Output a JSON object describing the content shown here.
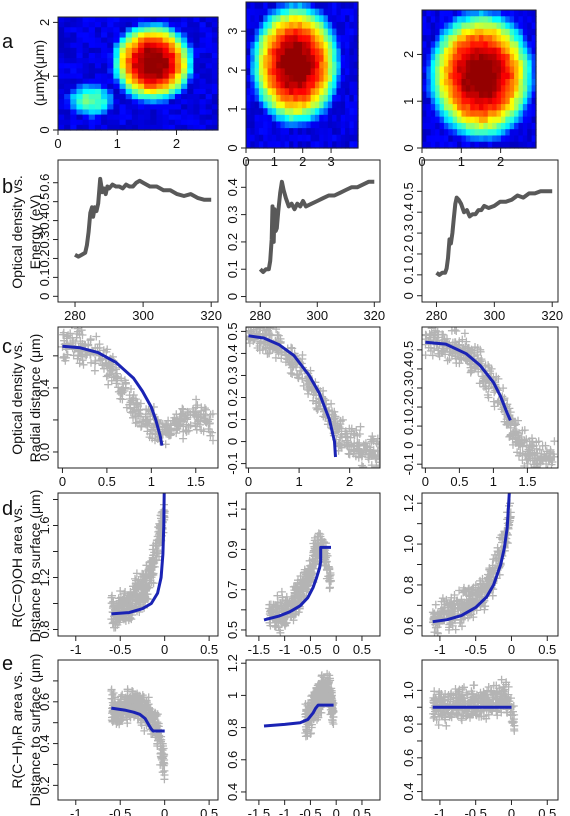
{
  "figure": {
    "row_labels": [
      "a",
      "b",
      "c",
      "d",
      "e"
    ],
    "row_a_ylabel": "(μm)×(μm)",
    "row_b_ylabel": [
      "Optical density vs.",
      "Energy (eV)"
    ],
    "row_c_ylabel": [
      "Optical density vs.",
      "Radial distance (μm)"
    ],
    "row_d_ylabel": [
      "R(C=O)OH area vs.",
      "Distance to surface (μm)"
    ],
    "row_e_ylabel": [
      "R(C−H)ₙR area vs.",
      "Distance to surface (μm)"
    ]
  },
  "colors": {
    "fit_line": "#1a23b4",
    "markers": "#b4b4b4",
    "spectrum": "#595959"
  },
  "chart_data": [
    {
      "row": "a",
      "col": 0,
      "type": "heatmap",
      "xlim": [
        0,
        2.7
      ],
      "ylim": [
        0,
        2.1
      ],
      "xticks": [
        0,
        1,
        2
      ],
      "yticks": [
        0,
        1,
        2
      ],
      "blobs": [
        [
          1.6,
          1.25,
          0.75,
          0.8
        ],
        [
          0.55,
          0.55,
          0.45,
          0.35
        ]
      ]
    },
    {
      "row": "a",
      "col": 1,
      "type": "heatmap",
      "xlim": [
        0,
        3.95
      ],
      "ylim": [
        0,
        3.75
      ],
      "xticks": [
        0,
        1,
        2,
        3
      ],
      "yticks": [
        0,
        1,
        2,
        3
      ],
      "blobs": [
        [
          1.75,
          2.15,
          1.7,
          1.7
        ]
      ]
    },
    {
      "row": "a",
      "col": 2,
      "type": "heatmap",
      "xlim": [
        0,
        2.9
      ],
      "ylim": [
        0,
        2.95
      ],
      "xticks": [
        0,
        1,
        2
      ],
      "yticks": [
        0,
        1,
        2
      ],
      "blobs": [
        [
          1.5,
          1.55,
          1.45,
          1.5
        ]
      ]
    },
    {
      "row": "b",
      "col": 0,
      "type": "line",
      "xlim": [
        275,
        322
      ],
      "ylim": [
        -0.03,
        0.72
      ],
      "xticks": [
        280,
        300,
        320
      ],
      "yticks": [
        0.0,
        0.1,
        0.2,
        0.3,
        0.4,
        0.5,
        0.6
      ],
      "x": [
        280,
        281,
        282,
        283,
        283.5,
        284,
        284.5,
        285,
        285.3,
        285.8,
        286.3,
        286.8,
        287.4,
        288,
        288.5,
        289,
        289.5,
        290,
        291,
        292,
        293,
        294,
        295,
        296,
        297,
        298,
        299,
        300,
        301,
        302,
        304,
        306,
        308,
        310,
        312,
        314,
        316,
        318,
        320
      ],
      "y": [
        0.22,
        0.21,
        0.22,
        0.23,
        0.27,
        0.34,
        0.44,
        0.47,
        0.42,
        0.47,
        0.45,
        0.49,
        0.62,
        0.55,
        0.57,
        0.54,
        0.58,
        0.57,
        0.59,
        0.58,
        0.58,
        0.57,
        0.59,
        0.58,
        0.58,
        0.6,
        0.61,
        0.6,
        0.59,
        0.58,
        0.58,
        0.56,
        0.56,
        0.54,
        0.53,
        0.54,
        0.52,
        0.51,
        0.51
      ]
    },
    {
      "row": "b",
      "col": 1,
      "type": "line",
      "xlim": [
        275,
        322
      ],
      "ylim": [
        -0.02,
        0.5
      ],
      "xticks": [
        280,
        300,
        320
      ],
      "yticks": [
        0.0,
        0.1,
        0.2,
        0.3,
        0.4
      ],
      "x": [
        280,
        281,
        282,
        283,
        283.5,
        284,
        284.3,
        284.7,
        285,
        285.4,
        285.8,
        286.3,
        287,
        287.6,
        288.2,
        289,
        290,
        291,
        292,
        293,
        294,
        295,
        296,
        298,
        300,
        302,
        304,
        306,
        308,
        310,
        312,
        314,
        316,
        318,
        320
      ],
      "y": [
        0.1,
        0.09,
        0.1,
        0.1,
        0.13,
        0.21,
        0.33,
        0.2,
        0.32,
        0.24,
        0.25,
        0.31,
        0.38,
        0.42,
        0.39,
        0.36,
        0.33,
        0.34,
        0.32,
        0.34,
        0.33,
        0.35,
        0.33,
        0.34,
        0.35,
        0.36,
        0.37,
        0.37,
        0.38,
        0.39,
        0.4,
        0.4,
        0.41,
        0.42,
        0.42
      ]
    },
    {
      "row": "b",
      "col": 2,
      "type": "line",
      "xlim": [
        275,
        322
      ],
      "ylim": [
        -0.03,
        0.65
      ],
      "xticks": [
        280,
        300,
        320
      ],
      "yticks": [
        0.0,
        0.1,
        0.2,
        0.3,
        0.4,
        0.5
      ],
      "x": [
        280,
        281,
        282,
        283,
        283.5,
        284,
        284.5,
        285,
        285.5,
        286,
        286.5,
        287,
        287.7,
        288.5,
        289.5,
        290.5,
        291.5,
        292.5,
        293.5,
        294.5,
        295.5,
        296.5,
        298,
        300,
        302,
        304,
        306,
        308,
        310,
        312,
        314,
        316,
        318,
        320
      ],
      "y": [
        0.11,
        0.1,
        0.11,
        0.11,
        0.13,
        0.18,
        0.27,
        0.25,
        0.3,
        0.37,
        0.44,
        0.47,
        0.46,
        0.44,
        0.4,
        0.41,
        0.38,
        0.39,
        0.39,
        0.41,
        0.41,
        0.43,
        0.42,
        0.43,
        0.45,
        0.45,
        0.46,
        0.48,
        0.47,
        0.49,
        0.49,
        0.5,
        0.5,
        0.5
      ]
    },
    {
      "row": "c",
      "col": 0,
      "type": "scatter",
      "xlim": [
        -0.05,
        1.75
      ],
      "ylim": [
        -0.1,
        0.78
      ],
      "xticks": [
        0.0,
        0.5,
        1.0,
        1.5
      ],
      "yticks": [
        0.0,
        0.2,
        0.4,
        0.6
      ],
      "ytick_labels": [
        "0.0",
        "",
        "0.4",
        ""
      ],
      "scatter_x": [
        0.0,
        0.1,
        0.2,
        0.3,
        0.4,
        0.5,
        0.6,
        0.7,
        0.8,
        0.9,
        1.0,
        1.05,
        1.1,
        1.2,
        1.3,
        1.4,
        1.5,
        1.6,
        1.7
      ],
      "scatter_y": [
        0.68,
        0.67,
        0.66,
        0.63,
        0.59,
        0.54,
        0.47,
        0.38,
        0.28,
        0.22,
        0.18,
        0.15,
        0.14,
        0.14,
        0.18,
        0.2,
        0.23,
        0.21,
        0.16
      ],
      "fit_x": [
        0.0,
        0.2,
        0.4,
        0.6,
        0.8,
        0.9,
        1.0,
        1.05,
        1.1,
        1.12
      ],
      "fit_y": [
        0.66,
        0.65,
        0.62,
        0.56,
        0.46,
        0.38,
        0.28,
        0.2,
        0.1,
        0.04
      ]
    },
    {
      "row": "c",
      "col": 1,
      "type": "scatter",
      "xlim": [
        -0.05,
        2.6
      ],
      "ylim": [
        -0.12,
        0.52
      ],
      "xticks": [
        0.0,
        1.0,
        2.0
      ],
      "yticks": [
        -0.1,
        0.0,
        0.1,
        0.2,
        0.3,
        0.4,
        0.5
      ],
      "scatter_x": [
        0.0,
        0.2,
        0.4,
        0.6,
        0.8,
        1.0,
        1.2,
        1.4,
        1.6,
        1.8,
        2.0,
        2.2,
        2.4,
        2.6
      ],
      "scatter_y": [
        0.49,
        0.48,
        0.46,
        0.43,
        0.38,
        0.33,
        0.27,
        0.19,
        0.11,
        0.03,
        0.0,
        -0.02,
        -0.04,
        -0.05
      ],
      "fit_x": [
        0.0,
        0.3,
        0.6,
        0.9,
        1.2,
        1.4,
        1.6,
        1.7,
        1.72
      ],
      "fit_y": [
        0.48,
        0.47,
        0.44,
        0.39,
        0.3,
        0.22,
        0.1,
        0.0,
        -0.07
      ]
    },
    {
      "row": "c",
      "col": 2,
      "type": "scatter",
      "xlim": [
        -0.05,
        1.95
      ],
      "ylim": [
        -0.12,
        0.62
      ],
      "xticks": [
        0.0,
        0.5,
        1.0,
        1.5
      ],
      "yticks": [
        -0.1,
        0.0,
        0.1,
        0.2,
        0.3,
        0.4,
        0.5
      ],
      "scatter_x": [
        0.0,
        0.2,
        0.4,
        0.6,
        0.8,
        1.0,
        1.1,
        1.2,
        1.3,
        1.4,
        1.5,
        1.6,
        1.7,
        1.8,
        1.9
      ],
      "scatter_y": [
        0.55,
        0.54,
        0.52,
        0.48,
        0.41,
        0.31,
        0.24,
        0.15,
        0.07,
        0.01,
        -0.03,
        -0.05,
        -0.06,
        -0.06,
        -0.07
      ],
      "fit_x": [
        0.0,
        0.3,
        0.6,
        0.8,
        1.0,
        1.1,
        1.2,
        1.25
      ],
      "fit_y": [
        0.54,
        0.53,
        0.48,
        0.42,
        0.33,
        0.26,
        0.17,
        0.13
      ]
    },
    {
      "row": "d",
      "col": 0,
      "type": "scatter",
      "xlim": [
        -1.2,
        0.6
      ],
      "ylim": [
        0.75,
        1.85
      ],
      "xticks": [
        -1.0,
        -0.5,
        0.0,
        0.5
      ],
      "yticks": [
        0.8,
        1.0,
        1.2,
        1.4,
        1.6,
        1.8
      ],
      "ytick_labels": [
        "0.8",
        "",
        "1.2",
        "",
        "1.6",
        ""
      ],
      "scatter_x": [
        -0.6,
        -0.5,
        -0.4,
        -0.3,
        -0.2,
        -0.15,
        -0.1,
        -0.05,
        0.0
      ],
      "scatter_y": [
        0.93,
        0.95,
        1.0,
        1.07,
        1.15,
        1.25,
        1.4,
        1.55,
        1.7
      ],
      "fit_x": [
        -0.6,
        -0.4,
        -0.25,
        -0.15,
        -0.08,
        -0.04,
        -0.02,
        -0.01,
        -0.005
      ],
      "fit_y": [
        0.92,
        0.93,
        0.96,
        1.0,
        1.08,
        1.2,
        1.38,
        1.6,
        1.85
      ]
    },
    {
      "row": "d",
      "col": 1,
      "type": "scatter",
      "xlim": [
        -1.75,
        0.85
      ],
      "ylim": [
        0.47,
        1.18
      ],
      "xticks": [
        -1.5,
        -1.0,
        -0.5,
        0.0,
        0.5
      ],
      "ytick_labels_custom": [
        [
          0.5,
          "0.5"
        ],
        [
          0.6,
          ""
        ],
        [
          0.7,
          "0.7"
        ],
        [
          0.8,
          ""
        ],
        [
          0.9,
          "0.9"
        ],
        [
          1.0,
          ""
        ],
        [
          1.1,
          "1.1"
        ]
      ],
      "scatter_x": [
        -1.3,
        -1.1,
        -0.9,
        -0.7,
        -0.5,
        -0.4,
        -0.3,
        -0.2,
        -0.1
      ],
      "scatter_y": [
        0.56,
        0.58,
        0.62,
        0.68,
        0.78,
        0.88,
        0.92,
        0.85,
        0.75
      ],
      "fit_x": [
        -1.4,
        -1.1,
        -0.9,
        -0.7,
        -0.55,
        -0.45,
        -0.38,
        -0.32,
        -0.3,
        -0.3,
        -0.1
      ],
      "fit_y": [
        0.55,
        0.57,
        0.59,
        0.62,
        0.66,
        0.71,
        0.76,
        0.81,
        0.84,
        0.91,
        0.91
      ]
    },
    {
      "row": "d",
      "col": 2,
      "type": "scatter",
      "xlim": [
        -1.25,
        0.65
      ],
      "ylim": [
        0.55,
        1.25
      ],
      "xticks": [
        -1.0,
        -0.5,
        0.0,
        0.5
      ],
      "ytick_labels_custom": [
        [
          0.6,
          "0.6"
        ],
        [
          0.7,
          ""
        ],
        [
          0.8,
          "0.8"
        ],
        [
          0.9,
          ""
        ],
        [
          1.0,
          "1.0"
        ],
        [
          1.1,
          ""
        ],
        [
          1.2,
          "1.2"
        ]
      ],
      "scatter_x": [
        -1.1,
        -0.9,
        -0.7,
        -0.5,
        -0.35,
        -0.25,
        -0.15,
        -0.08,
        0.0
      ],
      "scatter_y": [
        0.64,
        0.66,
        0.69,
        0.73,
        0.79,
        0.86,
        0.95,
        1.05,
        1.15
      ],
      "fit_x": [
        -1.1,
        -0.9,
        -0.7,
        -0.5,
        -0.35,
        -0.25,
        -0.15,
        -0.1,
        -0.06,
        -0.03
      ],
      "fit_y": [
        0.62,
        0.63,
        0.65,
        0.69,
        0.74,
        0.8,
        0.9,
        0.98,
        1.08,
        1.25
      ]
    },
    {
      "row": "e",
      "col": 0,
      "type": "scatter",
      "xlim": [
        -1.2,
        0.6
      ],
      "ylim": [
        0.13,
        0.8
      ],
      "xticks": [
        -1.0,
        -0.5,
        0.0,
        0.5
      ],
      "ytick_labels_custom": [
        [
          0.2,
          "0.2"
        ],
        [
          0.3,
          ""
        ],
        [
          0.4,
          "0.4"
        ],
        [
          0.5,
          ""
        ],
        [
          0.6,
          "0.6"
        ],
        [
          0.7,
          ""
        ]
      ],
      "scatter_x": [
        -0.6,
        -0.5,
        -0.4,
        -0.3,
        -0.2,
        -0.1,
        -0.05,
        0.0
      ],
      "scatter_y": [
        0.58,
        0.55,
        0.58,
        0.6,
        0.55,
        0.5,
        0.4,
        0.3
      ],
      "fit_x": [
        -0.6,
        -0.45,
        -0.35,
        -0.28,
        -0.22,
        -0.18,
        -0.15,
        -0.13,
        -0.05,
        0.0
      ],
      "fit_y": [
        0.57,
        0.56,
        0.55,
        0.54,
        0.52,
        0.49,
        0.47,
        0.46,
        0.46,
        0.46
      ]
    },
    {
      "row": "e",
      "col": 1,
      "type": "scatter",
      "xlim": [
        -1.75,
        0.85
      ],
      "ylim": [
        0.35,
        1.22
      ],
      "xticks": [
        -1.5,
        -1.0,
        -0.5,
        0.0,
        0.5
      ],
      "yticks": [
        0.4,
        0.6,
        0.8,
        1.0,
        1.2
      ],
      "scatter_x": [
        -0.6,
        -0.5,
        -0.4,
        -0.3,
        -0.2,
        -0.1,
        -0.05
      ],
      "scatter_y": [
        0.85,
        0.88,
        0.95,
        1.0,
        1.05,
        1.0,
        0.85
      ],
      "fit_x": [
        -1.4,
        -1.0,
        -0.7,
        -0.55,
        -0.45,
        -0.4,
        -0.35,
        -0.05
      ],
      "fit_y": [
        0.81,
        0.82,
        0.83,
        0.85,
        0.89,
        0.92,
        0.94,
        0.94
      ]
    },
    {
      "row": "e",
      "col": 2,
      "type": "scatter",
      "xlim": [
        -1.25,
        0.65
      ],
      "ylim": [
        0.35,
        1.18
      ],
      "xticks": [
        -1.0,
        -0.5,
        0.0,
        0.5
      ],
      "ytick_labels_custom": [
        [
          0.4,
          "0.4"
        ],
        [
          0.5,
          ""
        ],
        [
          0.6,
          "0.6"
        ],
        [
          0.7,
          ""
        ],
        [
          0.8,
          "0.8"
        ],
        [
          0.9,
          ""
        ],
        [
          1.0,
          "1.0"
        ]
      ],
      "scatter_x": [
        -1.1,
        -0.9,
        -0.7,
        -0.5,
        -0.3,
        -0.2,
        -0.1,
        0.0,
        0.05
      ],
      "scatter_y": [
        0.9,
        0.91,
        0.92,
        0.92,
        0.93,
        0.95,
        0.97,
        0.88,
        0.8
      ],
      "fit_x": [
        -1.1,
        0.0
      ],
      "fit_y": [
        0.9,
        0.9
      ]
    }
  ]
}
